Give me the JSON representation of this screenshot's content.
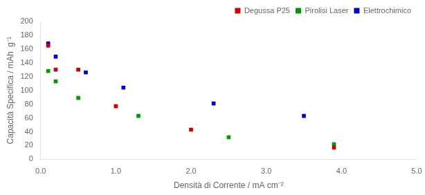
{
  "chart_data": {
    "type": "scatter",
    "xlabel": "Densità di Corrente / mA cm⁻²",
    "ylabel": "Capacità Specifica / mAh  g⁻¹",
    "series": [
      {
        "name": "Degussa P25",
        "color": "#cc0000",
        "x": [
          0.1,
          0.2,
          0.5,
          1.0,
          2.0,
          3.9
        ],
        "values": [
          165,
          130,
          130,
          77,
          43,
          17
        ]
      },
      {
        "name": "Pirolisi Laser",
        "color": "#009900",
        "x": [
          0.1,
          0.2,
          0.5,
          1.3,
          2.5,
          3.9
        ],
        "values": [
          128,
          113,
          89,
          63,
          32,
          22
        ]
      },
      {
        "name": "Elettrochimico",
        "color": "#0000cc",
        "x": [
          0.1,
          0.2,
          0.6,
          1.1,
          2.3,
          3.5
        ],
        "values": [
          168,
          149,
          126,
          104,
          81,
          63
        ]
      }
    ],
    "xlim": [
      0.0,
      5.0
    ],
    "ylim": [
      0,
      200
    ],
    "xticks": [
      {
        "value": 0.0,
        "label": "0.0"
      },
      {
        "value": 1.0,
        "label": "1.0"
      },
      {
        "value": 2.0,
        "label": "2.0"
      },
      {
        "value": 3.0,
        "label": "3.0"
      },
      {
        "value": 4.0,
        "label": "4.0"
      },
      {
        "value": 5.0,
        "label": "5.0"
      }
    ],
    "yticks": [
      0,
      20,
      40,
      60,
      80,
      100,
      120,
      140,
      160,
      180,
      200
    ],
    "marker": "square",
    "legend": "upper right",
    "grid": false
  }
}
